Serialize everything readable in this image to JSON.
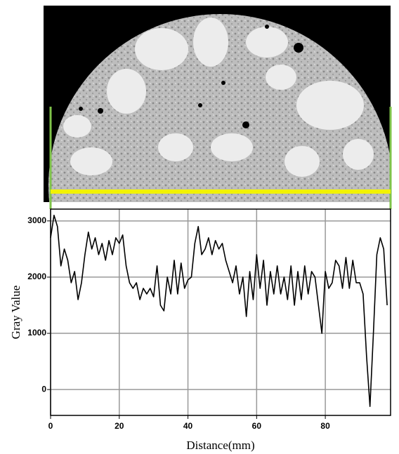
{
  "chart_data": {
    "type": "line",
    "xlabel": "Distance(mm)",
    "ylabel": "Gray Value",
    "x": [
      0,
      1,
      2,
      3,
      4,
      5,
      6,
      7,
      8,
      9,
      10,
      11,
      12,
      13,
      14,
      15,
      16,
      17,
      18,
      19,
      20,
      21,
      22,
      23,
      24,
      25,
      26,
      27,
      28,
      29,
      30,
      31,
      32,
      33,
      34,
      35,
      36,
      37,
      38,
      39,
      40,
      41,
      42,
      43,
      44,
      45,
      46,
      47,
      48,
      49,
      50,
      51,
      52,
      53,
      54,
      55,
      56,
      57,
      58,
      59,
      60,
      61,
      62,
      63,
      64,
      65,
      66,
      67,
      68,
      69,
      70,
      71,
      72,
      73,
      74,
      75,
      76,
      77,
      78,
      79,
      80,
      81,
      82,
      83,
      84,
      85,
      86,
      87,
      88,
      89,
      90,
      91,
      92,
      93,
      94,
      95,
      96,
      97,
      98
    ],
    "series": [
      {
        "color": "#000000",
        "values": [
          2700,
          3100,
          2900,
          2200,
          2500,
          2300,
          1900,
          2100,
          1600,
          1900,
          2400,
          2800,
          2500,
          2700,
          2400,
          2600,
          2300,
          2650,
          2400,
          2700,
          2600,
          2750,
          2200,
          1900,
          1800,
          1900,
          1600,
          1800,
          1700,
          1800,
          1650,
          2200,
          1500,
          1400,
          2000,
          1700,
          2300,
          1700,
          2250,
          1800,
          1950,
          2000,
          2600,
          2900,
          2400,
          2500,
          2700,
          2400,
          2650,
          2500,
          2600,
          2300,
          2100,
          1900,
          2200,
          1700,
          2000,
          1300,
          2100,
          1600,
          2400,
          1800,
          2300,
          1500,
          2100,
          1700,
          2200,
          1700,
          2000,
          1600,
          2200,
          1500,
          2100,
          1600,
          2200,
          1700,
          2100,
          2000,
          1500,
          1000,
          2100,
          1800,
          1900,
          2300,
          2200,
          1800,
          2350,
          1800,
          2300,
          1900,
          1900,
          1700,
          600,
          -300,
          1000,
          2400,
          2700,
          2500,
          1500
        ]
      }
    ],
    "xlim": [
      0,
      99
    ],
    "ylim": [
      -460,
      3210
    ],
    "xticks": [
      0,
      20,
      40,
      60,
      80
    ],
    "yticks": [
      0,
      1000,
      2000,
      3000
    ],
    "grid": true
  }
}
